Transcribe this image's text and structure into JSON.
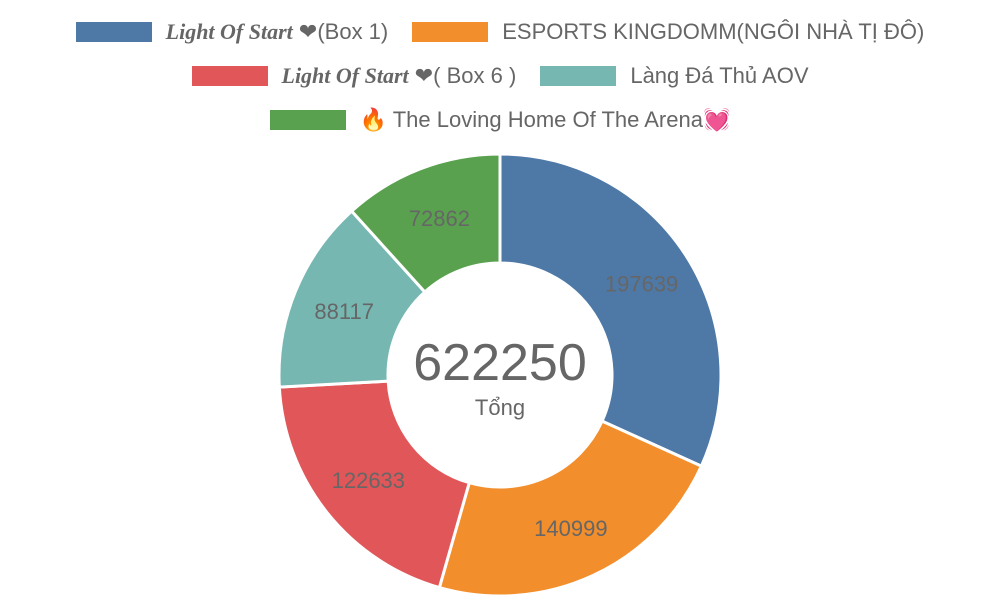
{
  "chart_data": {
    "type": "pie",
    "variant": "doughnut",
    "labels": [
      "Light Of Start ❤(Box 1)",
      "ESPORTS KINGDOMM(NGÔI NHÀ TỊ ĐÔ)",
      "Light Of Start ❤( Box 6 )",
      "Làng Đá Thủ AOV",
      "🔥 The Loving Home Of The Arena💓"
    ],
    "values": [
      197639,
      140999,
      122633,
      88117,
      72862
    ],
    "colors": [
      "#4e79a7",
      "#f28e2b",
      "#e15759",
      "#76b7b2",
      "#59a14f"
    ],
    "legend_position": "top",
    "center": {
      "value": "622250",
      "label": "Tổng"
    }
  }
}
